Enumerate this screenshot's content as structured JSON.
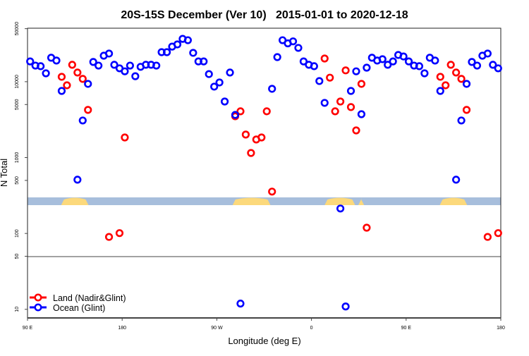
{
  "chart_data": {
    "type": "scatter",
    "title": "20S-15S December (Ver 10)   2015-01-01 to 2020-12-18",
    "xlabel": "Longitude (deg E)",
    "ylabel": "N Total",
    "x_tick_labels": [
      "90 E",
      "180",
      "90 W",
      "0",
      "90 E",
      "180"
    ],
    "x_range_note": "90 E to 180 shown twice (wrap-around)",
    "y_scale": "log",
    "y_ticks": [
      50000,
      10000,
      5000,
      1000,
      500,
      100,
      50,
      10
    ],
    "ylim": [
      7.7,
      50700
    ],
    "grid": false,
    "legend_position": "bottom-left",
    "land_ocean_strip": {
      "ocean_color": "#a7bedc",
      "land_color": "#fcd97c",
      "land_ranges": [
        [
          122,
          148
        ],
        [
          -75,
          -39
        ],
        [
          12.5,
          41.5
        ],
        [
          44.5,
          50
        ]
      ]
    },
    "series": [
      {
        "name": "Land (Nadir&Glint)",
        "color": "#ff0000",
        "points": [
          [
            122.5,
            11600
          ],
          [
            127.5,
            8970
          ],
          [
            132.5,
            16700
          ],
          [
            137.5,
            13200
          ],
          [
            142.5,
            10900
          ],
          [
            147.5,
            4250
          ],
          [
            167.5,
            90
          ],
          [
            177.5,
            101
          ],
          [
            -177.5,
            1840
          ],
          [
            -72.5,
            3500
          ],
          [
            -67.5,
            4070
          ],
          [
            -62.5,
            2010
          ],
          [
            -57.5,
            1150
          ],
          [
            -52.5,
            1730
          ],
          [
            -47.5,
            1840
          ],
          [
            -42.5,
            4070
          ],
          [
            -37.5,
            356
          ],
          [
            12.5,
            20200
          ],
          [
            17.5,
            11300
          ],
          [
            22.5,
            4070
          ],
          [
            27.5,
            5480
          ],
          [
            32.5,
            14100
          ],
          [
            37.5,
            4630
          ],
          [
            42.5,
            2280
          ],
          [
            47.5,
            9360
          ],
          [
            52.5,
            119
          ]
        ]
      },
      {
        "name": "Ocean (Glint)",
        "color": "#0000ff",
        "points": [
          [
            92.5,
            18500
          ],
          [
            97.5,
            16300
          ],
          [
            102.5,
            16000
          ],
          [
            107.5,
            12900
          ],
          [
            112.5,
            20700
          ],
          [
            117.5,
            19000
          ],
          [
            122.5,
            7550
          ],
          [
            137.5,
            511
          ],
          [
            142.5,
            3080
          ],
          [
            147.5,
            9360
          ],
          [
            152.5,
            18200
          ],
          [
            157.5,
            16300
          ],
          [
            162.5,
            22000
          ],
          [
            167.5,
            23500
          ],
          [
            172.5,
            16700
          ],
          [
            177.5,
            15000
          ],
          [
            -177.5,
            13700
          ],
          [
            -172.5,
            16300
          ],
          [
            -167.5,
            11800
          ],
          [
            -162.5,
            15700
          ],
          [
            -157.5,
            16700
          ],
          [
            -152.5,
            16700
          ],
          [
            -147.5,
            16300
          ],
          [
            -142.5,
            24500
          ],
          [
            -137.5,
            24500
          ],
          [
            -132.5,
            29000
          ],
          [
            -127.5,
            31000
          ],
          [
            -122.5,
            36700
          ],
          [
            -117.5,
            35200
          ],
          [
            -112.5,
            24000
          ],
          [
            -107.5,
            18500
          ],
          [
            -102.5,
            18500
          ],
          [
            -97.5,
            12600
          ],
          [
            -92.5,
            8600
          ],
          [
            -87.5,
            9770
          ],
          [
            -82.5,
            5480
          ],
          [
            -77.5,
            13200
          ],
          [
            -72.5,
            3650
          ],
          [
            -67.5,
            11.9
          ],
          [
            -37.5,
            8060
          ],
          [
            -32.5,
            21100
          ],
          [
            -27.5,
            35200
          ],
          [
            -22.5,
            32000
          ],
          [
            -17.5,
            34000
          ],
          [
            -12.5,
            27900
          ],
          [
            -7.5,
            18500
          ],
          [
            -2.5,
            16700
          ],
          [
            2.5,
            16000
          ],
          [
            7.5,
            10200
          ],
          [
            12.5,
            5260
          ],
          [
            27.5,
            213
          ],
          [
            32.5,
            10.9
          ],
          [
            37.5,
            7550
          ],
          [
            42.5,
            13700
          ],
          [
            47.5,
            3730
          ],
          [
            52.5,
            15300
          ],
          [
            57.5,
            20700
          ],
          [
            62.5,
            19000
          ],
          [
            67.5,
            19800
          ],
          [
            72.5,
            16700
          ],
          [
            77.5,
            18500
          ],
          [
            82.5,
            22500
          ],
          [
            87.5,
            21500
          ]
        ]
      }
    ]
  }
}
